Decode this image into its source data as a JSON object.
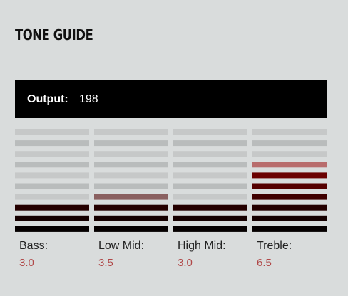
{
  "header": {
    "title": "TONE GUIDE"
  },
  "output": {
    "label": "Output:",
    "value": 198
  },
  "columns": [
    {
      "name": "Bass:",
      "value": {
        "value": 3,
        "label": "3.0"
      }
    },
    {
      "name": "Low Mid:",
      "value": {
        "value": 3.5,
        "label": "3.5"
      }
    },
    {
      "name": "High Mid:",
      "value": {
        "value": 3,
        "label": "3.0"
      }
    },
    {
      "name": "Treble:",
      "value": {
        "value": 6.5,
        "label": "6.5"
      }
    }
  ]
}
